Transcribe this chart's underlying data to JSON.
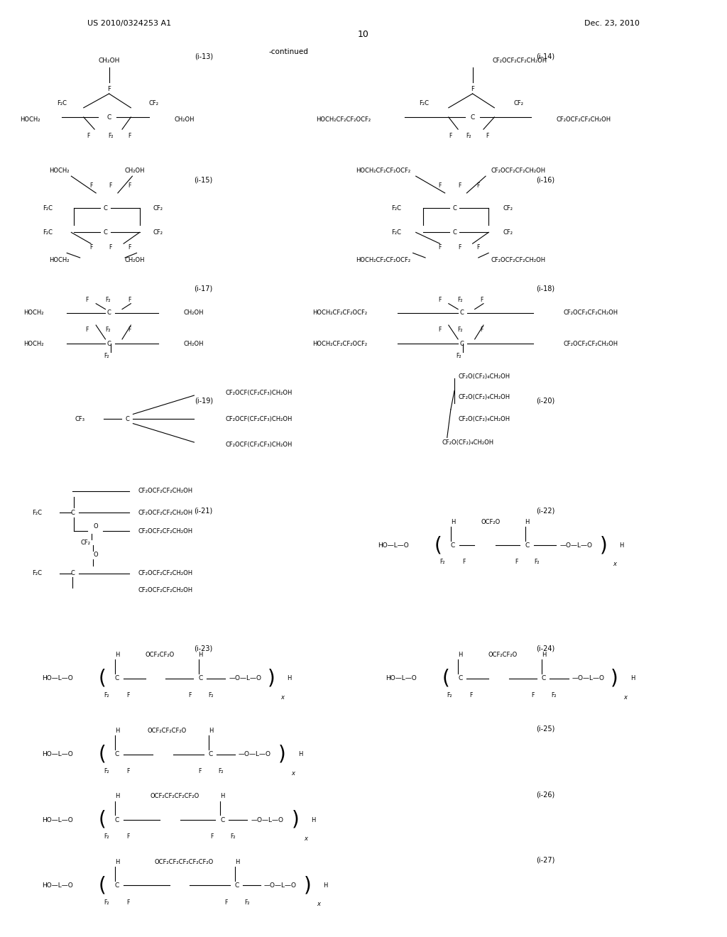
{
  "background_color": "#ffffff",
  "page_number": "10",
  "patent_number": "US 2010/0324253 A1",
  "patent_date": "Dec. 23, 2010",
  "continued_label": "-continued"
}
